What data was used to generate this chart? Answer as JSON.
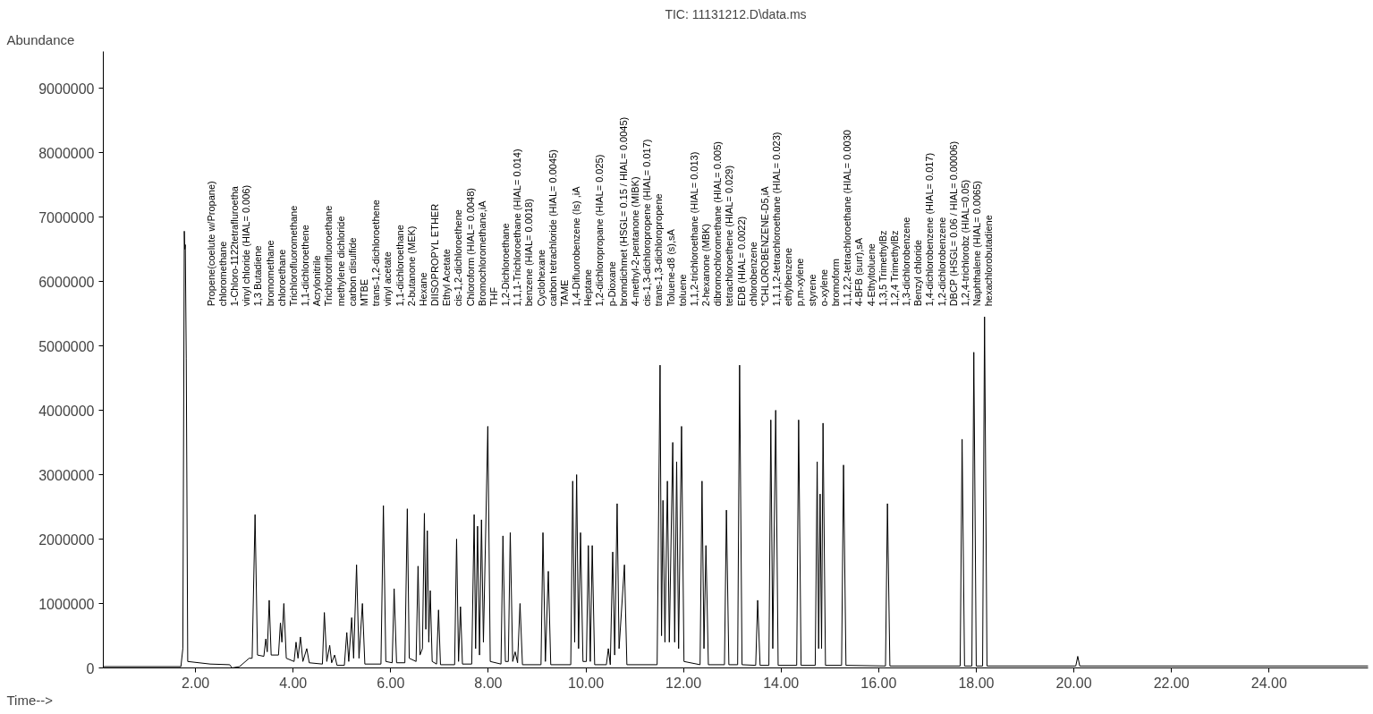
{
  "chart_data": {
    "type": "line",
    "title": "TIC: 11131212.D\\data.ms",
    "xlabel": "Time-->",
    "ylabel": "Abundance",
    "xlim": [
      0.11,
      26.03
    ],
    "ylim": [
      0,
      9570000
    ],
    "xticks": [
      {
        "value": 2,
        "label": "2.00"
      },
      {
        "value": 4,
        "label": "4.00"
      },
      {
        "value": 6,
        "label": "6.00"
      },
      {
        "value": 8,
        "label": "8.00"
      },
      {
        "value": 10,
        "label": "10.00"
      },
      {
        "value": 12,
        "label": "12.00"
      },
      {
        "value": 14,
        "label": "14.00"
      },
      {
        "value": 16,
        "label": "16.00"
      },
      {
        "value": 18,
        "label": "18.00"
      },
      {
        "value": 20,
        "label": "20.00"
      },
      {
        "value": 22,
        "label": "22.00"
      },
      {
        "value": 24,
        "label": "24.00"
      }
    ],
    "yticks": [
      0,
      1000000,
      2000000,
      3000000,
      4000000,
      5000000,
      6000000,
      7000000,
      8000000,
      9000000
    ],
    "grid": false,
    "marker": "none",
    "line_style": "solid",
    "series": [
      {
        "color": "#000000",
        "x": [
          0.11,
          1.7,
          1.74,
          1.77,
          1.78,
          1.79,
          1.81,
          1.84,
          2.3,
          2.7,
          2.75,
          2.9,
          3.1,
          3.16,
          3.22,
          3.27,
          3.4,
          3.44,
          3.47,
          3.51,
          3.55,
          3.7,
          3.74,
          3.77,
          3.81,
          3.86,
          4.02,
          4.06,
          4.1,
          4.15,
          4.2,
          4.28,
          4.33,
          4.6,
          4.64,
          4.69,
          4.75,
          4.79,
          4.85,
          4.9,
          5.05,
          5.1,
          5.14,
          5.2,
          5.24,
          5.3,
          5.35,
          5.42,
          5.47,
          5.8,
          5.85,
          5.9,
          6.03,
          6.07,
          6.12,
          6.29,
          6.34,
          6.38,
          6.52,
          6.56,
          6.6,
          6.65,
          6.69,
          6.72,
          6.75,
          6.78,
          6.81,
          6.85,
          6.94,
          6.98,
          7.02,
          7.31,
          7.35,
          7.39,
          7.43,
          7.47,
          7.66,
          7.71,
          7.74,
          7.78,
          7.82,
          7.86,
          7.9,
          7.99,
          8.04,
          8.26,
          8.3,
          8.35,
          8.41,
          8.45,
          8.5,
          8.55,
          8.6,
          8.65,
          8.7,
          9.08,
          9.12,
          9.17,
          9.23,
          9.28,
          9.69,
          9.73,
          9.77,
          9.81,
          9.85,
          9.89,
          9.94,
          10.01,
          10.05,
          10.09,
          10.13,
          10.18,
          10.42,
          10.46,
          10.5,
          10.55,
          10.59,
          10.64,
          10.68,
          10.79,
          10.84,
          11.46,
          11.52,
          11.55,
          11.58,
          11.62,
          11.67,
          11.71,
          11.78,
          11.82,
          11.86,
          11.9,
          11.96,
          12.01,
          12.34,
          12.38,
          12.42,
          12.46,
          12.51,
          12.84,
          12.88,
          12.93,
          13.11,
          13.15,
          13.2,
          13.48,
          13.52,
          13.57,
          13.75,
          13.79,
          13.83,
          13.89,
          13.94,
          14.32,
          14.36,
          14.41,
          14.7,
          14.74,
          14.77,
          14.8,
          14.83,
          14.86,
          14.91,
          15.24,
          15.28,
          15.33,
          16.14,
          16.18,
          16.23,
          17.67,
          17.71,
          17.76,
          17.91,
          17.95,
          18.0,
          18.13,
          18.17,
          18.22,
          20.04,
          20.08,
          20.12,
          26.03
        ],
        "values": [
          20000,
          20000,
          300000,
          6780000,
          6500000,
          6570000,
          4800000,
          100000,
          60000,
          50000,
          0,
          20000,
          150000,
          150000,
          2380000,
          200000,
          180000,
          450000,
          250000,
          1050000,
          200000,
          200000,
          700000,
          400000,
          1000000,
          150000,
          100000,
          400000,
          150000,
          480000,
          100000,
          300000,
          80000,
          60000,
          860000,
          100000,
          350000,
          80000,
          200000,
          40000,
          40000,
          550000,
          100000,
          780000,
          150000,
          1600000,
          150000,
          1000000,
          60000,
          60000,
          2520000,
          100000,
          80000,
          1230000,
          80000,
          80000,
          2470000,
          150000,
          100000,
          1580000,
          200000,
          300000,
          2400000,
          600000,
          2130000,
          400000,
          1200000,
          100000,
          60000,
          900000,
          50000,
          50000,
          2000000,
          100000,
          950000,
          60000,
          60000,
          2380000,
          300000,
          2200000,
          200000,
          2300000,
          400000,
          3750000,
          100000,
          60000,
          2050000,
          100000,
          100000,
          2100000,
          100000,
          250000,
          80000,
          1000000,
          50000,
          50000,
          2100000,
          100000,
          1500000,
          50000,
          50000,
          2900000,
          400000,
          3000000,
          300000,
          2100000,
          100000,
          100000,
          1900000,
          100000,
          1900000,
          50000,
          50000,
          300000,
          50000,
          1800000,
          200000,
          2550000,
          300000,
          1600000,
          50000,
          50000,
          4700000,
          500000,
          2600000,
          400000,
          2900000,
          400000,
          3500000,
          400000,
          3200000,
          300000,
          3750000,
          100000,
          50000,
          2900000,
          300000,
          1900000,
          50000,
          50000,
          2450000,
          50000,
          50000,
          4700000,
          50000,
          40000,
          1050000,
          40000,
          40000,
          3850000,
          300000,
          4000000,
          40000,
          40000,
          3850000,
          40000,
          40000,
          3200000,
          300000,
          2700000,
          300000,
          3800000,
          40000,
          40000,
          3150000,
          40000,
          30000,
          2550000,
          30000,
          30000,
          3550000,
          30000,
          30000,
          4900000,
          30000,
          30000,
          5450000,
          30000,
          30000,
          180000,
          30000,
          30000
        ]
      }
    ],
    "annotations": [
      "Propene(coelute w/Propane)",
      "chloromethane",
      "1-Chloro-1122tetrafluroetha",
      "vinyl chloride (HIAL= 0.006)",
      "1,3 Butadiene",
      "bromomethane",
      "chloroethane",
      "Trichlorofluoromethane",
      "1,1-dichloroethene",
      "Acrylonitrile",
      "Trichlorotrifluoroethane",
      "methylene dichloride",
      "carbon disulfide",
      "MTBE",
      "trans-1,2-dichloroethene",
      "vinyl acetate",
      "1,1-dichloroethane",
      "2-butanone (MEK)",
      "Hexane",
      "DIISOPROPYL ETHER",
      "Ethyl Acetate",
      "cis-1,2-dichloroethene",
      "Chloroform (HIAL= 0.0048)",
      "Bromochloromethane,iA",
      "THF",
      "1,2-Dichloroethane",
      "1,1,1-Trichloroethane (HIAL= 0.014)",
      "benzene (HIAL= 0.0018)",
      "Cyclohexane",
      "carbon tetrachloride (HIAL= 0.0045)",
      "TAME",
      "1,4-Difluorobenzene (Is) ,iA",
      "Heptane",
      "1,2-dichloropropane (HIAL= 0.025)",
      "p-Dioxane",
      "bromdichmet (HSGL= 0.15 / HIAL= 0.0045)",
      "4-methyl-2-pentanone (MIBK)",
      "cis-1,3-dichloropropene (HIAL= 0.017)",
      "trans-1,3-dichloropropene",
      "Toluene-d8 (s),sA",
      "toluene",
      "1,1,2-trichloroethane (HIAL= 0.013)",
      "2-hexanone (MBK)",
      "dibromochloromethane (HIAL= 0.005)",
      "tetrachloroethene (HIAL= 0.029)",
      "EDB (HIAL= 0.0022)",
      "chlorobenzene",
      "*CHLOROBENZENE-D5,iA",
      "1,1,1,2-tetrachloroethane (HIAL= 0.023)",
      "ethylbenzene",
      "p,m-xylene",
      "styrene",
      "o-xylene",
      "bromoform",
      "1,1,2,2-tetrachloroethane (HIAL= 0.0030",
      "4-BFB (surr),sA",
      "4-Ethyltoluene",
      "1,3,5 TrimethylBz",
      "1,2,4 TrimethylBz",
      "1,3-dichlorobenzene",
      "Benzyl chloride",
      "1,4-dichlorobenzene (HIAL= 0.017)",
      "1,2-dichlorobenzene",
      "DBCP (HSGL= 0.06 / HIAL= 0.00006)",
      "1,2,4-trichlorobz (HIAL=0.05)",
      "Naphthalene (HIAL= 0.0065)",
      "hexachlorobutadiene"
    ]
  }
}
